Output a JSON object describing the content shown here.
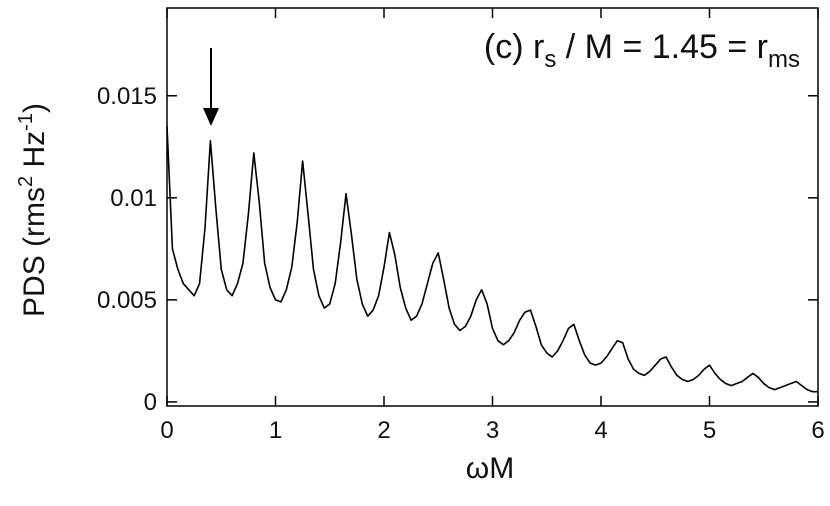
{
  "chart_data": {
    "type": "line",
    "annotation": [
      "(c) r",
      "s",
      " / M = 1.45 = r",
      "ms"
    ],
    "x_label": "ωM",
    "y_label": [
      "PDS (rms",
      "2",
      " Hz",
      "-1",
      ")"
    ],
    "color": "#000000",
    "xlim": [
      0,
      6
    ],
    "xticks": [
      0,
      1,
      2,
      3,
      4,
      5,
      6
    ],
    "ylim": [
      -0.0002,
      0.0193
    ],
    "yticks": [
      0,
      0.005,
      0.01,
      0.015
    ],
    "x": [
      0,
      0.05,
      0.1,
      0.15,
      0.2,
      0.25,
      0.3,
      0.35,
      0.4,
      0.45,
      0.5,
      0.55,
      0.6,
      0.65,
      0.7,
      0.75,
      0.8,
      0.85,
      0.9,
      0.95,
      1.0,
      1.05,
      1.1,
      1.15,
      1.2,
      1.25,
      1.3,
      1.35,
      1.4,
      1.45,
      1.5,
      1.55,
      1.6,
      1.65,
      1.7,
      1.75,
      1.8,
      1.85,
      1.9,
      1.95,
      2.0,
      2.05,
      2.1,
      2.15,
      2.2,
      2.25,
      2.3,
      2.35,
      2.4,
      2.45,
      2.5,
      2.55,
      2.6,
      2.65,
      2.7,
      2.75,
      2.8,
      2.85,
      2.9,
      2.95,
      3.0,
      3.05,
      3.1,
      3.15,
      3.2,
      3.25,
      3.3,
      3.35,
      3.4,
      3.45,
      3.5,
      3.55,
      3.6,
      3.65,
      3.7,
      3.75,
      3.8,
      3.85,
      3.9,
      3.95,
      4.0,
      4.05,
      4.1,
      4.15,
      4.2,
      4.25,
      4.3,
      4.35,
      4.4,
      4.45,
      4.5,
      4.55,
      4.6,
      4.65,
      4.7,
      4.75,
      4.8,
      4.85,
      4.9,
      4.95,
      5.0,
      5.05,
      5.1,
      5.15,
      5.2,
      5.25,
      5.3,
      5.35,
      5.4,
      5.45,
      5.5,
      5.55,
      5.6,
      5.65,
      5.7,
      5.75,
      5.8,
      5.85,
      5.9,
      5.95,
      6.0
    ],
    "values": [
      0.0135,
      0.0075,
      0.0065,
      0.0058,
      0.0055,
      0.0052,
      0.0058,
      0.0085,
      0.0128,
      0.0095,
      0.0065,
      0.0055,
      0.0052,
      0.0058,
      0.0068,
      0.0092,
      0.0122,
      0.0098,
      0.0068,
      0.0056,
      0.005,
      0.0049,
      0.0055,
      0.0066,
      0.0088,
      0.0118,
      0.0092,
      0.0065,
      0.0052,
      0.0046,
      0.0048,
      0.0058,
      0.0078,
      0.0102,
      0.0082,
      0.006,
      0.0048,
      0.0042,
      0.0045,
      0.0052,
      0.0066,
      0.0083,
      0.0072,
      0.0056,
      0.0046,
      0.004,
      0.0042,
      0.0048,
      0.0058,
      0.0068,
      0.0073,
      0.006,
      0.0046,
      0.0038,
      0.0035,
      0.0037,
      0.0042,
      0.005,
      0.0055,
      0.0048,
      0.0036,
      0.003,
      0.0028,
      0.003,
      0.0034,
      0.004,
      0.0044,
      0.0045,
      0.0037,
      0.0028,
      0.0024,
      0.0022,
      0.0025,
      0.003,
      0.0036,
      0.0038,
      0.003,
      0.0023,
      0.0019,
      0.0018,
      0.0019,
      0.0022,
      0.0026,
      0.003,
      0.0029,
      0.0021,
      0.0016,
      0.0014,
      0.0013,
      0.0015,
      0.0018,
      0.0021,
      0.0022,
      0.0017,
      0.0013,
      0.0011,
      0.001,
      0.0011,
      0.0013,
      0.0016,
      0.0018,
      0.0014,
      0.0011,
      0.0009,
      0.0008,
      0.0009,
      0.001,
      0.0012,
      0.0014,
      0.0012,
      0.0009,
      0.0007,
      0.0006,
      0.0007,
      0.0008,
      0.0009,
      0.001,
      0.0008,
      0.0006,
      0.0005,
      0.0005
    ]
  }
}
